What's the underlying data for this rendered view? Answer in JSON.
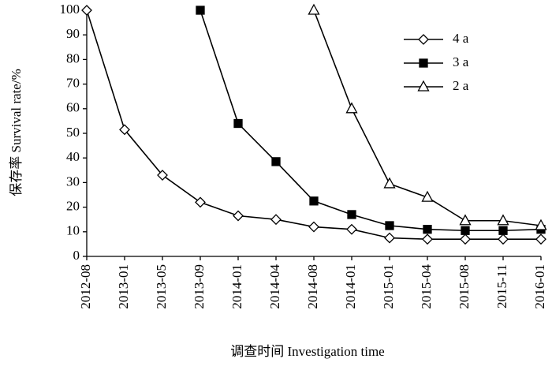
{
  "chart_data": {
    "type": "line",
    "x_label": "调查时间 Investigation time",
    "y_label": "保存率 Survival rate/%",
    "categories": [
      "2012-08",
      "2013-01",
      "2013-05",
      "2013-09",
      "2014-01",
      "2014-04",
      "2014-08",
      "2014-01",
      "2015-01",
      "2015-04",
      "2015-08",
      "2015-11",
      "2016-01"
    ],
    "series": [
      {
        "name": "4 a",
        "color": "#000000",
        "marker": "diamond",
        "marker_fill": "#ffffff",
        "values": [
          100,
          51.5,
          33,
          22,
          16.5,
          15,
          12,
          11,
          7.5,
          7,
          7,
          7,
          7
        ]
      },
      {
        "name": "3 a",
        "color": "#000000",
        "marker": "square",
        "marker_fill": "#000000",
        "values": [
          null,
          null,
          null,
          100,
          54,
          38.5,
          22.5,
          17,
          12.5,
          11,
          10.5,
          10.5,
          11
        ]
      },
      {
        "name": "2 a",
        "color": "#000000",
        "marker": "triangle",
        "marker_fill": "#ffffff",
        "values": [
          null,
          null,
          null,
          null,
          null,
          null,
          100,
          60,
          29.5,
          24,
          14.5,
          14.5,
          12.5
        ]
      }
    ],
    "ylim": [
      0,
      100
    ],
    "yticks": [
      0,
      10,
      20,
      30,
      40,
      50,
      60,
      70,
      80,
      90,
      100
    ],
    "legend": "upper-right",
    "grid": false
  }
}
